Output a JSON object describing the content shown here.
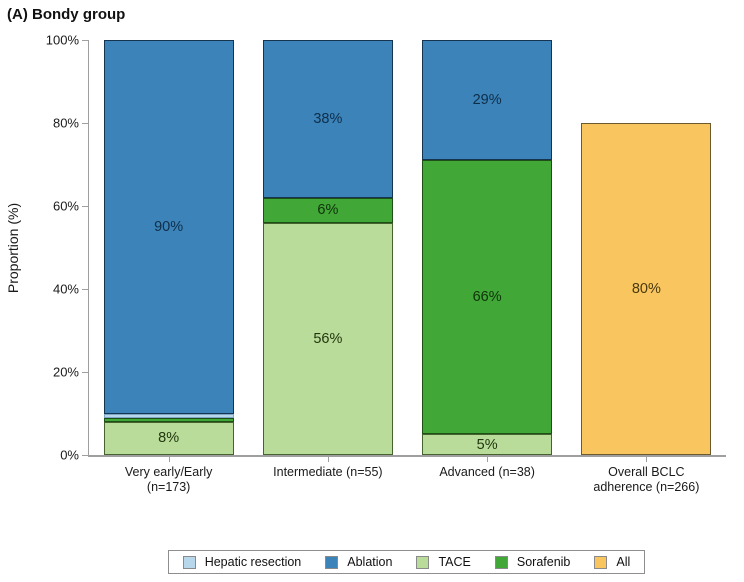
{
  "title": "(A) Bondy group",
  "chart_data": {
    "type": "bar",
    "stacked": true,
    "title": "(A) Bondy group",
    "xlabel": "",
    "ylabel": "Proportion (%)",
    "ylim": [
      0,
      100
    ],
    "ytick_values": [
      0,
      20,
      40,
      60,
      80,
      100
    ],
    "ytick_labels": [
      "0%",
      "20%",
      "40%",
      "60%",
      "80%",
      "100%"
    ],
    "grid": false,
    "legend_position": "bottom-center",
    "axis_color": "#9f9f9f",
    "series_order": [
      "Hepatic resection",
      "Ablation",
      "TACE",
      "Sorafenib",
      "All"
    ],
    "series_styles": {
      "Hepatic resection": {
        "fill": "#b9d7ea",
        "border": "#7fa6c6",
        "label_color": "#123047"
      },
      "Ablation": {
        "fill": "#3b83b8",
        "border": "#14344f",
        "label_color": "#0f2e4a"
      },
      "TACE": {
        "fill": "#b9dc9a",
        "border": "#46632f",
        "label_color": "#22370f"
      },
      "Sorafenib": {
        "fill": "#41a737",
        "border": "#1e4f16",
        "label_color": "#0f330b"
      },
      "All": {
        "fill": "#f8c55f",
        "border": "#6b5a2e",
        "label_color": "#4a3910"
      }
    },
    "categories": [
      "Very early/Early (n=173)",
      "Intermediate (n=55)",
      "Advanced (n=38)",
      "Overall BCLC adherence (n=266)"
    ],
    "bars": [
      {
        "category_lines": [
          "Very early/Early",
          "(n=173)"
        ],
        "segments": [
          {
            "series": "TACE",
            "value": 8,
            "label": "8%"
          },
          {
            "series": "Sorafenib",
            "value": 1,
            "label": ""
          },
          {
            "series": "Hepatic resection",
            "value": 1,
            "label": ""
          },
          {
            "series": "Ablation",
            "value": 90,
            "label": "90%"
          }
        ]
      },
      {
        "category_lines": [
          "Intermediate (n=55)"
        ],
        "segments": [
          {
            "series": "TACE",
            "value": 56,
            "label": "56%"
          },
          {
            "series": "Sorafenib",
            "value": 6,
            "label": "6%"
          },
          {
            "series": "Ablation",
            "value": 38,
            "label": "38%"
          }
        ]
      },
      {
        "category_lines": [
          "Advanced (n=38)"
        ],
        "segments": [
          {
            "series": "TACE",
            "value": 5,
            "label": "5%"
          },
          {
            "series": "Sorafenib",
            "value": 66,
            "label": "66%"
          },
          {
            "series": "Ablation",
            "value": 29,
            "label": "29%"
          }
        ]
      },
      {
        "category_lines": [
          "Overall BCLC",
          "adherence (n=266)"
        ],
        "segments": [
          {
            "series": "All",
            "value": 80,
            "label": "80%"
          }
        ]
      }
    ]
  }
}
